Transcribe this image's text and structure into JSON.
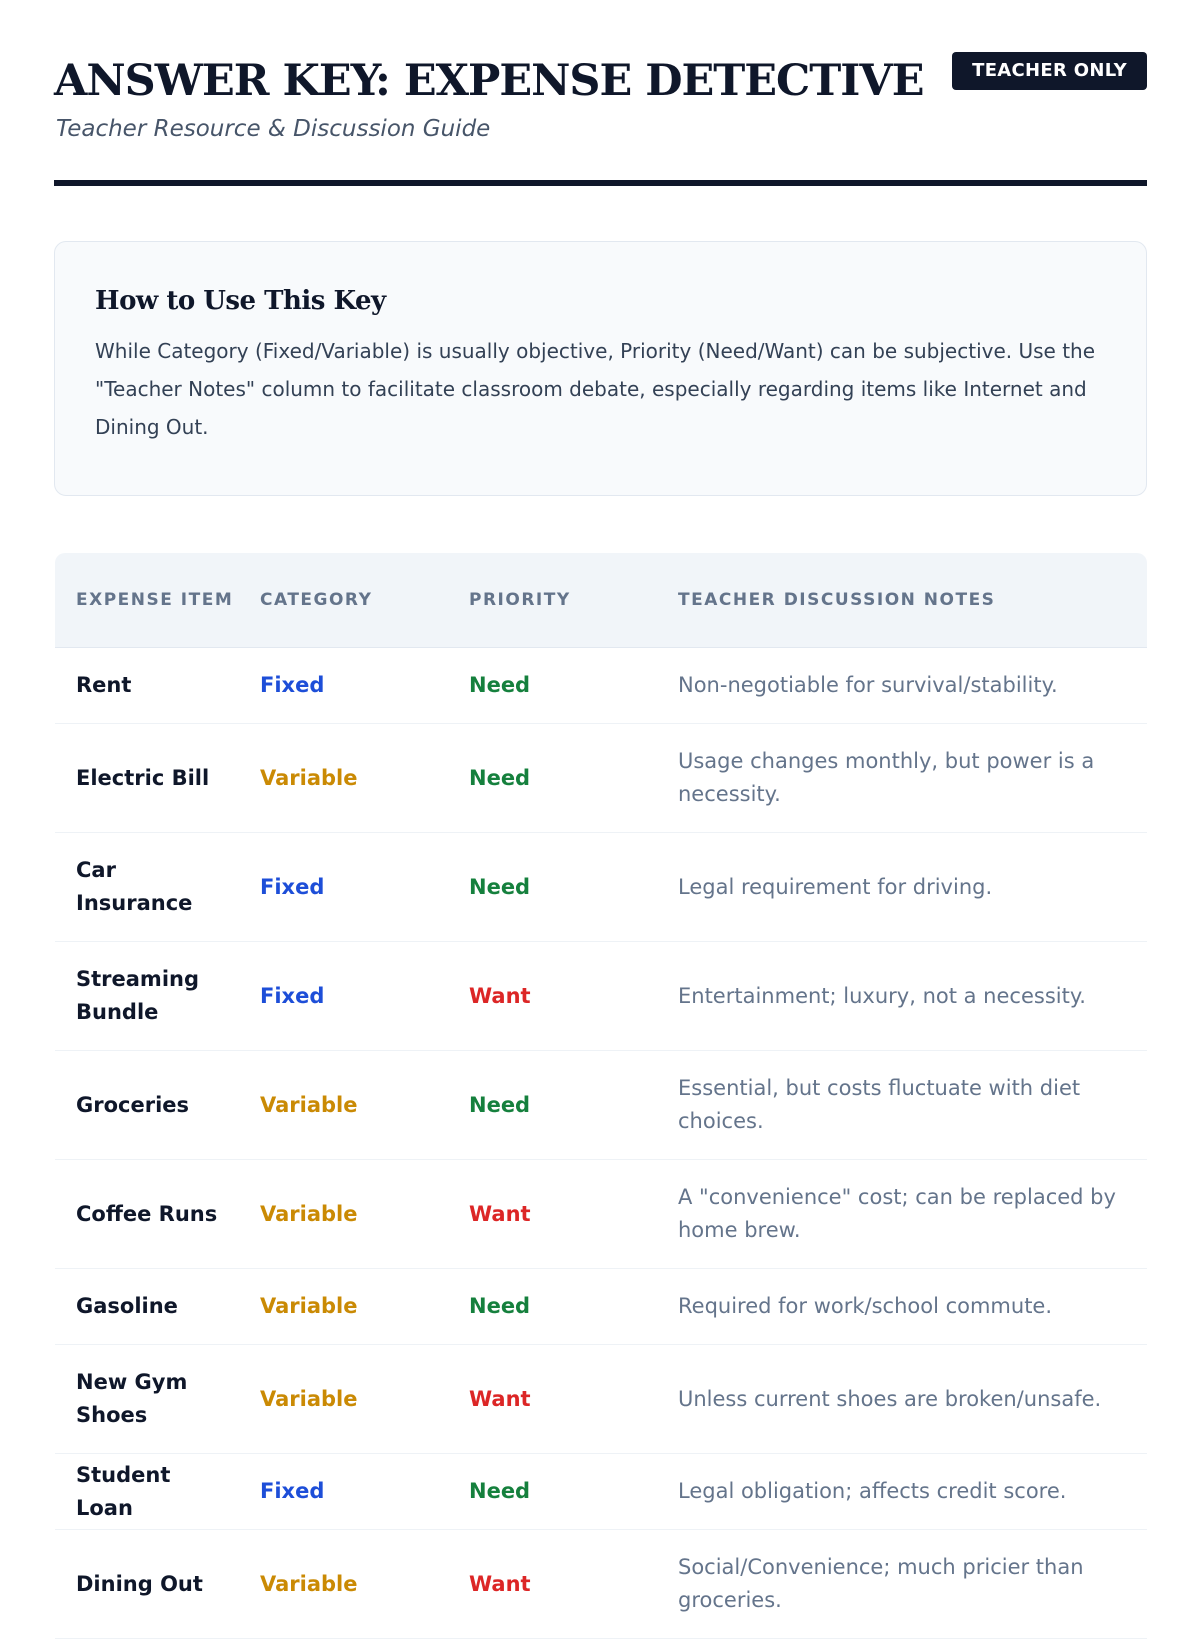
{
  "header": {
    "title": "ANSWER KEY: EXPENSE DETECTIVE",
    "badge": "TEACHER ONLY",
    "subtitle": "Teacher Resource & Discussion Guide"
  },
  "guide": {
    "heading": "How to Use This Key",
    "body": "While Category (Fixed/Variable) is usually objective, Priority (Need/Want) can be subjective. Use the \"Teacher Notes\" column to facilitate classroom debate, especially regarding items like Internet and Dining Out."
  },
  "table": {
    "columns": [
      "Expense Item",
      "Category",
      "Priority",
      "Teacher Discussion Notes"
    ],
    "rows": [
      {
        "item": "Rent",
        "category": "Fixed",
        "priority": "Need",
        "notes": "Non-negotiable for survival/stability."
      },
      {
        "item": "Electric Bill",
        "category": "Variable",
        "priority": "Need",
        "notes": "Usage changes monthly, but power is a necessity."
      },
      {
        "item": "Car Insurance",
        "category": "Fixed",
        "priority": "Need",
        "notes": "Legal requirement for driving."
      },
      {
        "item": "Streaming Bundle",
        "category": "Fixed",
        "priority": "Want",
        "notes": "Entertainment; luxury, not a necessity."
      },
      {
        "item": "Groceries",
        "category": "Variable",
        "priority": "Need",
        "notes": "Essential, but costs fluctuate with diet choices."
      },
      {
        "item": "Coffee Runs",
        "category": "Variable",
        "priority": "Want",
        "notes": "A \"convenience\" cost; can be replaced by home brew."
      },
      {
        "item": "Gasoline",
        "category": "Variable",
        "priority": "Need",
        "notes": "Required for work/school commute."
      },
      {
        "item": "New Gym Shoes",
        "category": "Variable",
        "priority": "Want",
        "notes": "Unless current shoes are broken/unsafe."
      },
      {
        "item": "Student Loan",
        "category": "Fixed",
        "priority": "Need",
        "notes": "Legal obligation; affects credit score."
      },
      {
        "item": "Dining Out",
        "category": "Variable",
        "priority": "Want",
        "notes": "Social/Convenience; much pricier than groceries."
      }
    ]
  },
  "colors": {
    "fixed": "#1d4ed8",
    "variable": "#ca8a04",
    "need": "#15803d",
    "want": "#dc2626",
    "ink": "#0f172a"
  }
}
